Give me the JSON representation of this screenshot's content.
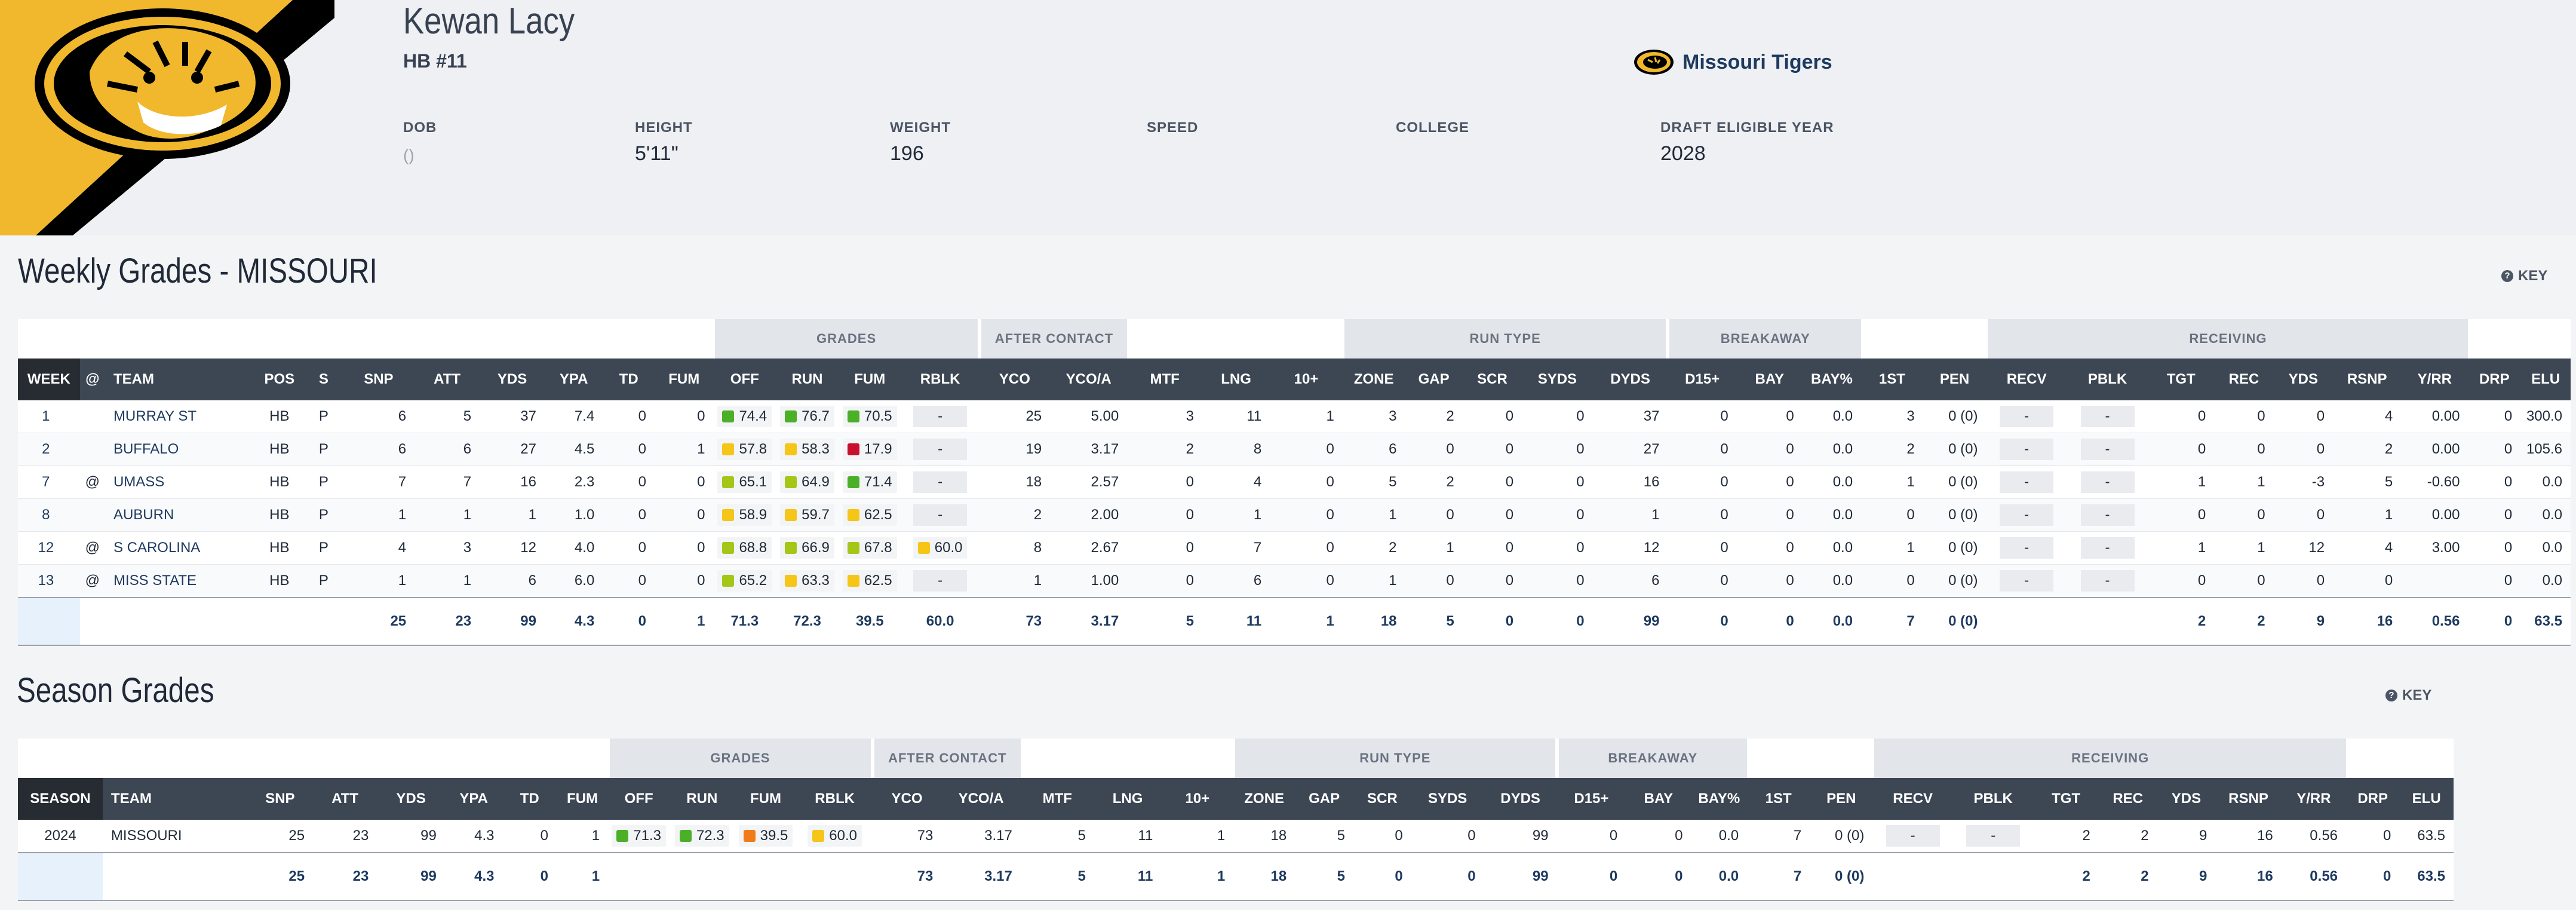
{
  "player": {
    "name": "Kewan Lacy",
    "position": "HB #11",
    "team": "Missouri Tigers"
  },
  "colors": {
    "mizzou_gold": "#f1b82d",
    "mizzou_black": "#000000",
    "header_dark": "#3d4653",
    "grade_green": "#4caf28",
    "grade_lime": "#a3c617",
    "grade_yellow": "#f5c518",
    "grade_orange": "#f07c18",
    "grade_red": "#c8102e"
  },
  "bio": [
    {
      "label": "DOB",
      "value": "()"
    },
    {
      "label": "HEIGHT",
      "value": "5'11\""
    },
    {
      "label": "WEIGHT",
      "value": "196"
    },
    {
      "label": "SPEED",
      "value": ""
    },
    {
      "label": "COLLEGE",
      "value": ""
    },
    {
      "label": "DRAFT ELIGIBLE YEAR",
      "value": "2028"
    }
  ],
  "weekly": {
    "title": "Weekly Grades - MISSOURI",
    "key": "KEY",
    "groups": {
      "grades": "GRADES",
      "after_contact": "AFTER CONTACT",
      "run_type": "RUN TYPE",
      "breakaway": "BREAKAWAY",
      "receiving": "RECEIVING"
    },
    "columns": [
      "WEEK",
      "@",
      "TEAM",
      "POS",
      "S",
      "SNP",
      "ATT",
      "YDS",
      "YPA",
      "TD",
      "FUM",
      "OFF",
      "RUN",
      "FUM",
      "RBLK",
      "YCO",
      "YCO/A",
      "MTF",
      "LNG",
      "10+",
      "ZONE",
      "GAP",
      "SCR",
      "SYDS",
      "DYDS",
      "D15+",
      "BAY",
      "BAY%",
      "1ST",
      "PEN",
      "RECV",
      "PBLK",
      "TGT",
      "REC",
      "YDS",
      "RSNP",
      "Y/RR",
      "DRP",
      "ELU"
    ],
    "rows": [
      {
        "week": "1",
        "at": "",
        "team": "MURRAY ST",
        "pos": "HB",
        "s": "P",
        "snp": "6",
        "att": "5",
        "yds": "37",
        "ypa": "7.4",
        "td": "0",
        "fum": "0",
        "off": "74.4",
        "off_c": "green",
        "run": "76.7",
        "run_c": "green",
        "fumg": "70.5",
        "fumg_c": "green",
        "rblk": "-",
        "yco": "25",
        "ycoa": "5.00",
        "mtf": "3",
        "lng": "11",
        "ten": "1",
        "zone": "3",
        "gap": "2",
        "scr": "0",
        "syds": "0",
        "dyds": "37",
        "d15": "0",
        "bay": "0",
        "bayp": "0.0",
        "first": "3",
        "pen": "0 (0)",
        "recv": "-",
        "pblk": "-",
        "tgt": "0",
        "rec": "0",
        "ryds": "0",
        "rsnp": "4",
        "yrr": "0.00",
        "drp": "0",
        "elu": "300.0"
      },
      {
        "week": "2",
        "at": "",
        "team": "BUFFALO",
        "pos": "HB",
        "s": "P",
        "snp": "6",
        "att": "6",
        "yds": "27",
        "ypa": "4.5",
        "td": "0",
        "fum": "1",
        "off": "57.8",
        "off_c": "yellow",
        "run": "58.3",
        "run_c": "yellow",
        "fumg": "17.9",
        "fumg_c": "red",
        "rblk": "-",
        "yco": "19",
        "ycoa": "3.17",
        "mtf": "2",
        "lng": "8",
        "ten": "0",
        "zone": "6",
        "gap": "0",
        "scr": "0",
        "syds": "0",
        "dyds": "27",
        "d15": "0",
        "bay": "0",
        "bayp": "0.0",
        "first": "2",
        "pen": "0 (0)",
        "recv": "-",
        "pblk": "-",
        "tgt": "0",
        "rec": "0",
        "ryds": "0",
        "rsnp": "2",
        "yrr": "0.00",
        "drp": "0",
        "elu": "105.6"
      },
      {
        "week": "7",
        "at": "@",
        "team": "UMASS",
        "pos": "HB",
        "s": "P",
        "snp": "7",
        "att": "7",
        "yds": "16",
        "ypa": "2.3",
        "td": "0",
        "fum": "0",
        "off": "65.1",
        "off_c": "lime",
        "run": "64.9",
        "run_c": "lime",
        "fumg": "71.4",
        "fumg_c": "green",
        "rblk": "-",
        "yco": "18",
        "ycoa": "2.57",
        "mtf": "0",
        "lng": "4",
        "ten": "0",
        "zone": "5",
        "gap": "2",
        "scr": "0",
        "syds": "0",
        "dyds": "16",
        "d15": "0",
        "bay": "0",
        "bayp": "0.0",
        "first": "1",
        "pen": "0 (0)",
        "recv": "-",
        "pblk": "-",
        "tgt": "1",
        "rec": "1",
        "ryds": "-3",
        "rsnp": "5",
        "yrr": "-0.60",
        "drp": "0",
        "elu": "0.0"
      },
      {
        "week": "8",
        "at": "",
        "team": "AUBURN",
        "pos": "HB",
        "s": "P",
        "snp": "1",
        "att": "1",
        "yds": "1",
        "ypa": "1.0",
        "td": "0",
        "fum": "0",
        "off": "58.9",
        "off_c": "yellow",
        "run": "59.7",
        "run_c": "yellow",
        "fumg": "62.5",
        "fumg_c": "yellow",
        "rblk": "-",
        "yco": "2",
        "ycoa": "2.00",
        "mtf": "0",
        "lng": "1",
        "ten": "0",
        "zone": "1",
        "gap": "0",
        "scr": "0",
        "syds": "0",
        "dyds": "1",
        "d15": "0",
        "bay": "0",
        "bayp": "0.0",
        "first": "0",
        "pen": "0 (0)",
        "recv": "-",
        "pblk": "-",
        "tgt": "0",
        "rec": "0",
        "ryds": "0",
        "rsnp": "1",
        "yrr": "0.00",
        "drp": "0",
        "elu": "0.0"
      },
      {
        "week": "12",
        "at": "@",
        "team": "S CAROLINA",
        "pos": "HB",
        "s": "P",
        "snp": "4",
        "att": "3",
        "yds": "12",
        "ypa": "4.0",
        "td": "0",
        "fum": "0",
        "off": "68.8",
        "off_c": "lime",
        "run": "66.9",
        "run_c": "lime",
        "fumg": "67.8",
        "fumg_c": "lime",
        "rblk": "60.0",
        "rblk_c": "yellow",
        "yco": "8",
        "ycoa": "2.67",
        "mtf": "0",
        "lng": "7",
        "ten": "0",
        "zone": "2",
        "gap": "1",
        "scr": "0",
        "syds": "0",
        "dyds": "12",
        "d15": "0",
        "bay": "0",
        "bayp": "0.0",
        "first": "1",
        "pen": "0 (0)",
        "recv": "-",
        "pblk": "-",
        "tgt": "1",
        "rec": "1",
        "ryds": "12",
        "rsnp": "4",
        "yrr": "3.00",
        "drp": "0",
        "elu": "0.0"
      },
      {
        "week": "13",
        "at": "@",
        "team": "MISS STATE",
        "pos": "HB",
        "s": "P",
        "snp": "1",
        "att": "1",
        "yds": "6",
        "ypa": "6.0",
        "td": "0",
        "fum": "0",
        "off": "65.2",
        "off_c": "lime",
        "run": "63.3",
        "run_c": "yellow",
        "fumg": "62.5",
        "fumg_c": "yellow",
        "rblk": "-",
        "yco": "1",
        "ycoa": "1.00",
        "mtf": "0",
        "lng": "6",
        "ten": "0",
        "zone": "1",
        "gap": "0",
        "scr": "0",
        "syds": "0",
        "dyds": "6",
        "d15": "0",
        "bay": "0",
        "bayp": "0.0",
        "first": "0",
        "pen": "0 (0)",
        "recv": "-",
        "pblk": "-",
        "tgt": "0",
        "rec": "0",
        "ryds": "0",
        "rsnp": "0",
        "yrr": "",
        "drp": "0",
        "elu": "0.0"
      }
    ],
    "totals": {
      "snp": "25",
      "att": "23",
      "yds": "99",
      "ypa": "4.3",
      "td": "0",
      "fum": "1",
      "off": "71.3",
      "run": "72.3",
      "fumg": "39.5",
      "rblk": "60.0",
      "yco": "73",
      "ycoa": "3.17",
      "mtf": "5",
      "lng": "11",
      "ten": "1",
      "zone": "18",
      "gap": "5",
      "scr": "0",
      "syds": "0",
      "dyds": "99",
      "d15": "0",
      "bay": "0",
      "bayp": "0.0",
      "first": "7",
      "pen": "0 (0)",
      "tgt": "2",
      "rec": "2",
      "ryds": "9",
      "rsnp": "16",
      "yrr": "0.56",
      "drp": "0",
      "elu": "63.5"
    }
  },
  "season": {
    "title": "Season Grades",
    "key": "KEY",
    "columns": [
      "SEASON",
      "TEAM",
      "SNP",
      "ATT",
      "YDS",
      "YPA",
      "TD",
      "FUM",
      "OFF",
      "RUN",
      "FUM",
      "RBLK",
      "YCO",
      "YCO/A",
      "MTF",
      "LNG",
      "10+",
      "ZONE",
      "GAP",
      "SCR",
      "SYDS",
      "DYDS",
      "D15+",
      "BAY",
      "BAY%",
      "1ST",
      "PEN",
      "RECV",
      "PBLK",
      "TGT",
      "REC",
      "YDS",
      "RSNP",
      "Y/RR",
      "DRP",
      "ELU"
    ],
    "row": {
      "season": "2024",
      "team": "MISSOURI",
      "snp": "25",
      "att": "23",
      "yds": "99",
      "ypa": "4.3",
      "td": "0",
      "fum": "1",
      "off": "71.3",
      "off_c": "green",
      "run": "72.3",
      "run_c": "green",
      "fumg": "39.5",
      "fumg_c": "orange",
      "rblk": "60.0",
      "rblk_c": "yellow",
      "yco": "73",
      "ycoa": "3.17",
      "mtf": "5",
      "lng": "11",
      "ten": "1",
      "zone": "18",
      "gap": "5",
      "scr": "0",
      "syds": "0",
      "dyds": "99",
      "d15": "0",
      "bay": "0",
      "bayp": "0.0",
      "first": "7",
      "pen": "0 (0)",
      "recv": "-",
      "pblk": "-",
      "tgt": "2",
      "rec": "2",
      "ryds": "9",
      "rsnp": "16",
      "yrr": "0.56",
      "drp": "0",
      "elu": "63.5"
    },
    "totals": {
      "snp": "25",
      "att": "23",
      "yds": "99",
      "ypa": "4.3",
      "td": "0",
      "fum": "1",
      "yco": "73",
      "ycoa": "3.17",
      "mtf": "5",
      "lng": "11",
      "ten": "1",
      "zone": "18",
      "gap": "5",
      "scr": "0",
      "syds": "0",
      "dyds": "99",
      "d15": "0",
      "bay": "0",
      "bayp": "0.0",
      "first": "7",
      "pen": "0 (0)",
      "tgt": "2",
      "rec": "2",
      "ryds": "9",
      "rsnp": "16",
      "yrr": "0.56",
      "drp": "0",
      "elu": "63.5"
    }
  }
}
